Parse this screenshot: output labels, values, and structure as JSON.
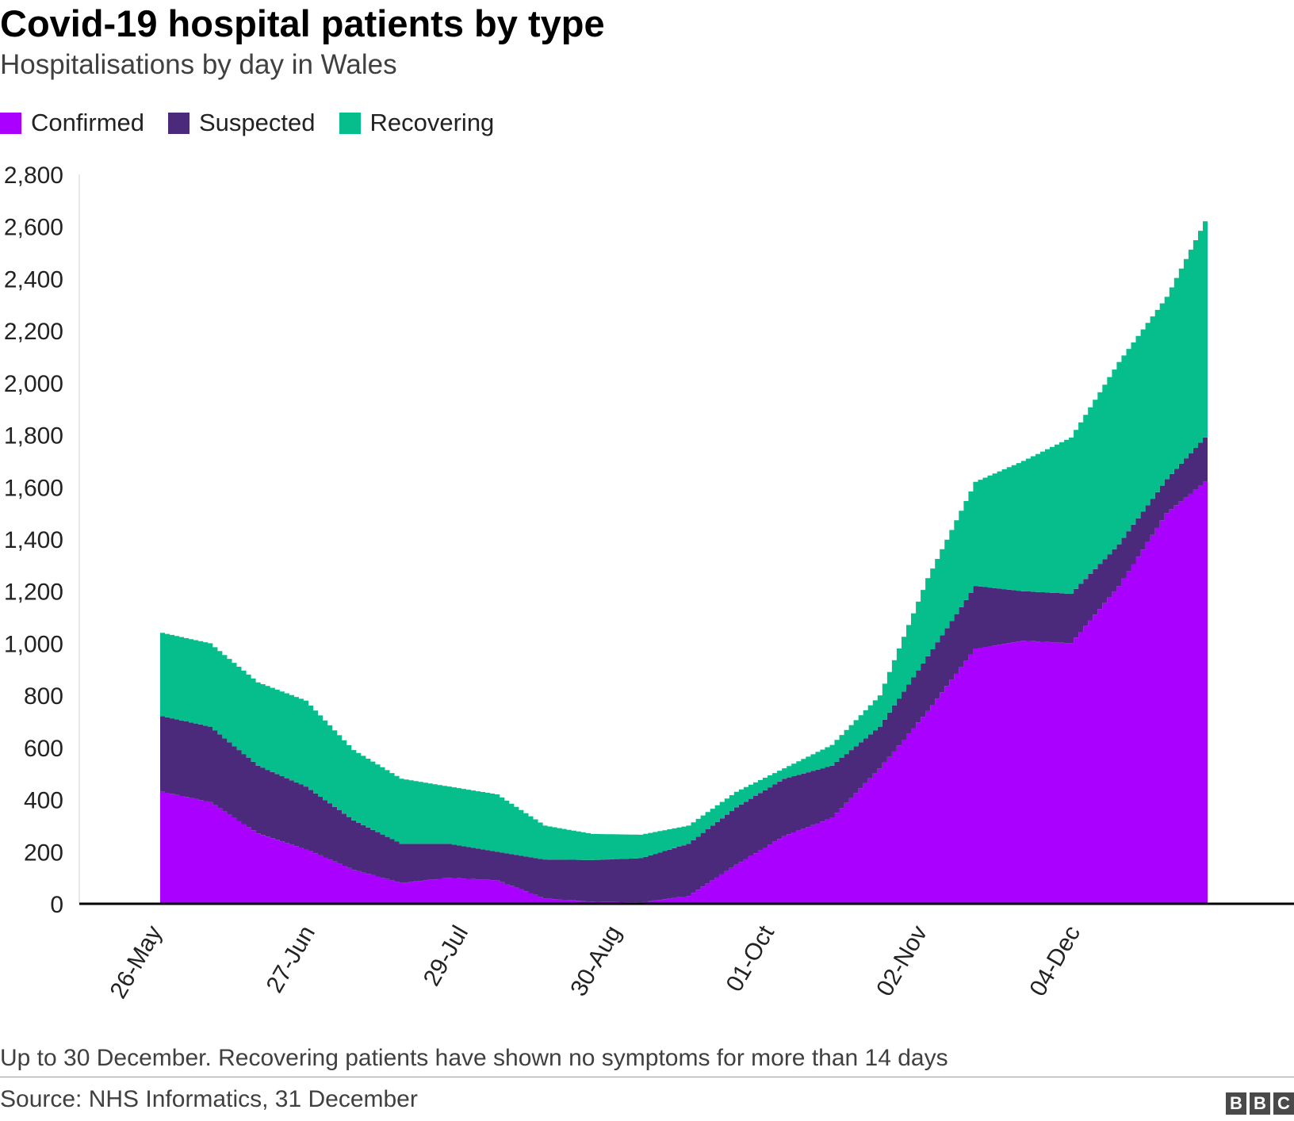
{
  "header": {
    "title": "Covid-19 hospital patients by type",
    "subtitle": "Hospitalisations by day in Wales"
  },
  "legend": [
    {
      "label": "Confirmed",
      "color": "#aa00ff"
    },
    {
      "label": "Suspected",
      "color": "#4b2a7b"
    },
    {
      "label": "Recovering",
      "color": "#06be8c"
    }
  ],
  "footer": {
    "note": "Up to 30 December. Recovering patients have shown no symptoms for more than 14 days",
    "source": "Source: NHS Informatics, 31 December",
    "logo": [
      "B",
      "B",
      "C"
    ]
  },
  "chart_data": {
    "type": "area",
    "stacked": true,
    "title": "Covid-19 hospital patients by type",
    "subtitle": "Hospitalisations by day in Wales",
    "xlabel": "",
    "ylabel": "",
    "ylim": [
      0,
      2800
    ],
    "yticks": [
      0,
      200,
      400,
      600,
      800,
      1000,
      1200,
      1400,
      1600,
      1800,
      2000,
      2200,
      2400,
      2600,
      2800
    ],
    "ytick_labels": [
      "0",
      "200",
      "400",
      "600",
      "800",
      "1,000",
      "1,200",
      "1,400",
      "1,600",
      "1,800",
      "2,000",
      "2,200",
      "2,400",
      "2,600",
      "2,800"
    ],
    "xlim": [
      "2020-05-26",
      "2020-12-30"
    ],
    "xtick_labels": [
      "26-May",
      "27-Jun",
      "29-Jul",
      "30-Aug",
      "01-Oct",
      "02-Nov",
      "04-Dec"
    ],
    "xtick_dates": [
      "2020-05-26",
      "2020-06-27",
      "2020-07-29",
      "2020-08-30",
      "2020-10-01",
      "2020-11-02",
      "2020-12-04"
    ],
    "legend_position": "top-left",
    "grid": false,
    "x": [
      "2020-05-26",
      "2020-06-05",
      "2020-06-15",
      "2020-06-25",
      "2020-07-05",
      "2020-07-15",
      "2020-07-25",
      "2020-08-04",
      "2020-08-14",
      "2020-08-24",
      "2020-09-03",
      "2020-09-13",
      "2020-09-23",
      "2020-10-03",
      "2020-10-13",
      "2020-10-23",
      "2020-11-02",
      "2020-11-12",
      "2020-11-22",
      "2020-12-02",
      "2020-12-12",
      "2020-12-22",
      "2020-12-30"
    ],
    "series": [
      {
        "name": "Confirmed",
        "color": "#aa00ff",
        "values": [
          430,
          390,
          270,
          210,
          130,
          80,
          100,
          90,
          20,
          8,
          5,
          30,
          150,
          260,
          330,
          520,
          740,
          980,
          1010,
          1000,
          1220,
          1500,
          1620
        ]
      },
      {
        "name": "Suspected",
        "color": "#4b2a7b",
        "values": [
          290,
          290,
          260,
          240,
          190,
          150,
          130,
          110,
          150,
          160,
          170,
          200,
          220,
          220,
          200,
          160,
          210,
          240,
          190,
          190,
          160,
          130,
          170
        ]
      },
      {
        "name": "Recovering",
        "color": "#06be8c",
        "values": [
          320,
          320,
          320,
          330,
          270,
          250,
          220,
          220,
          130,
          100,
          90,
          70,
          60,
          40,
          80,
          120,
          300,
          400,
          500,
          600,
          700,
          700,
          830
        ]
      }
    ]
  }
}
